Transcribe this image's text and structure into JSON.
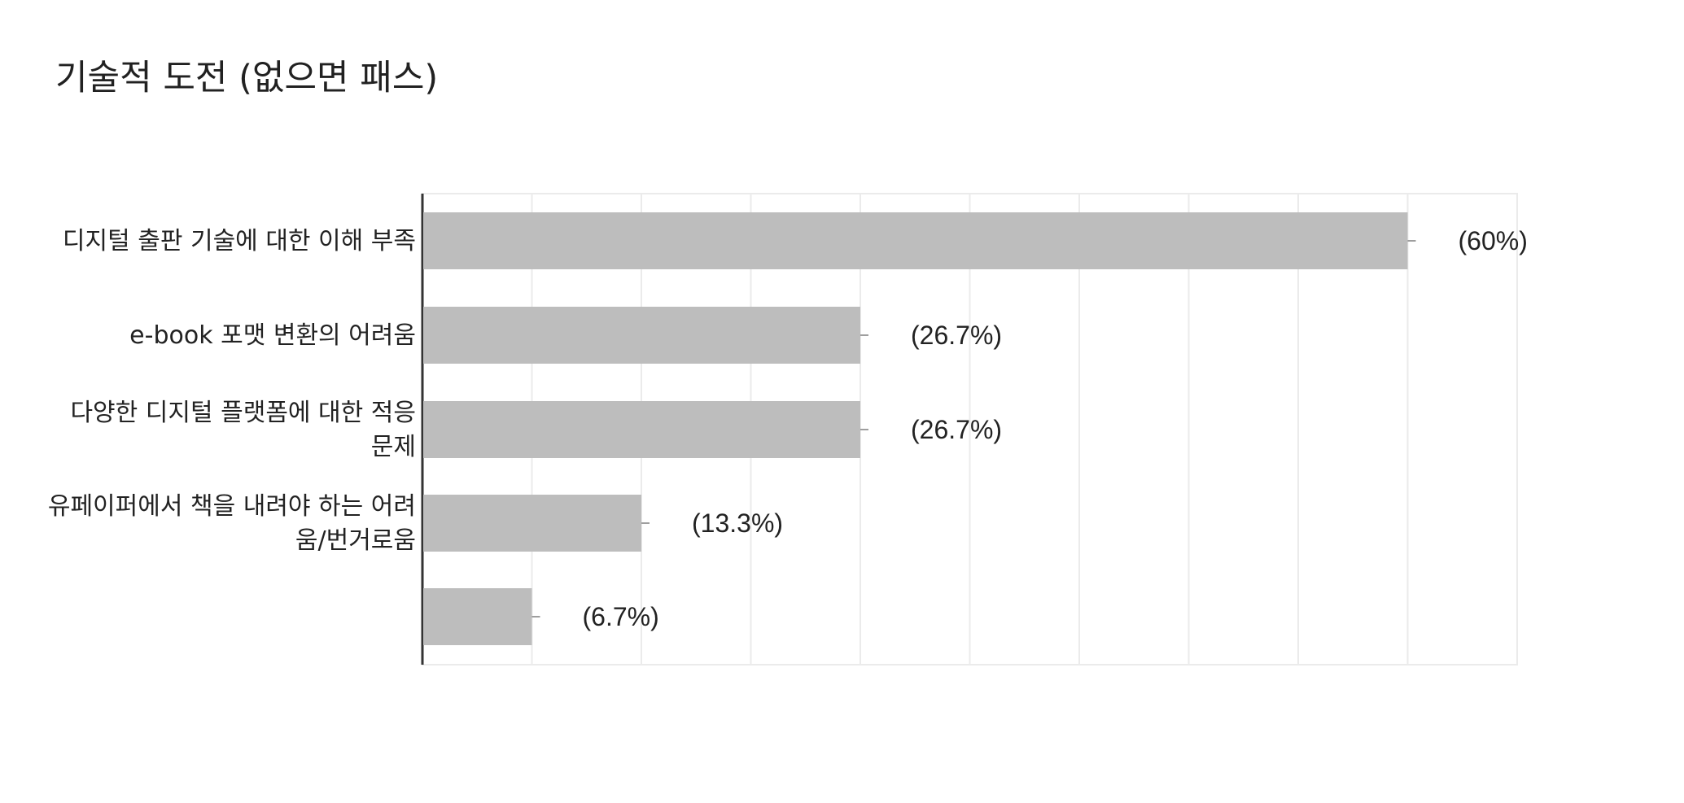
{
  "chart_data": {
    "type": "bar",
    "orientation": "horizontal",
    "title": "기술적 도전 (없으면 패스)",
    "categories": [
      [
        "디지털 출판 기술에 대한 이해 부족"
      ],
      [
        "e-book 포맷 변환의 어려움"
      ],
      [
        "다양한 디지털 플랫폼에 대한 적응",
        "문제"
      ],
      [
        "유페이퍼에서 책을 내려야 하는 어려",
        "움/번거로움"
      ],
      [
        ""
      ]
    ],
    "values": [
      9,
      4,
      4,
      2,
      1
    ],
    "data_labels": [
      "(60%)",
      "(26.7%)",
      "(26.7%)",
      "(13.3%)",
      "(6.7%)"
    ],
    "xlim": [
      0,
      10
    ],
    "grid": true,
    "bar_color": "#bdbdbd",
    "legend": "none"
  }
}
